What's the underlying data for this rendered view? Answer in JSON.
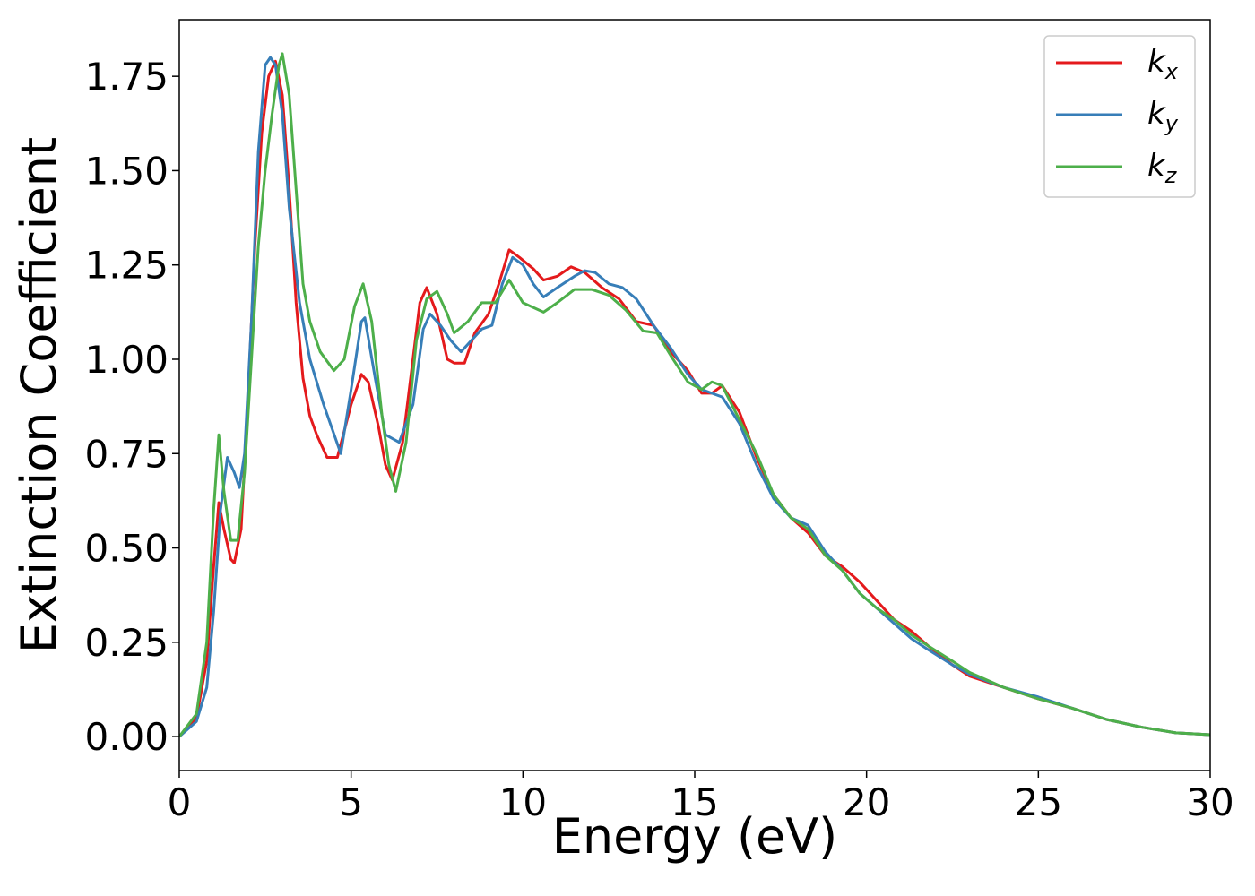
{
  "chart_data": {
    "type": "line",
    "xlabel": "Energy (eV)",
    "ylabel": "Extinction Coefficient",
    "xlim": [
      0,
      30
    ],
    "xticks": [
      0,
      5,
      10,
      15,
      20,
      25,
      30
    ],
    "ylim": [
      -0.09,
      1.9
    ],
    "yticks": [
      {
        "value": 0,
        "label": "0.00"
      },
      {
        "value": 0.25,
        "label": "0.25"
      },
      {
        "value": 0.5,
        "label": "0.50"
      },
      {
        "value": 0.75,
        "label": "0.75"
      },
      {
        "value": 1,
        "label": "1.00"
      },
      {
        "value": 1.25,
        "label": "1.25"
      },
      {
        "value": 1.5,
        "label": "1.50"
      },
      {
        "value": 1.75,
        "label": "1.75"
      }
    ],
    "legend": "upper right",
    "series": [
      {
        "name": "kx",
        "color": "#e41a1c",
        "x": [
          0,
          0.5,
          0.8,
          1.0,
          1.15,
          1.3,
          1.5,
          1.6,
          1.8,
          2.0,
          2.2,
          2.4,
          2.6,
          2.8,
          3.0,
          3.2,
          3.4,
          3.6,
          3.8,
          4.0,
          4.3,
          4.6,
          5.0,
          5.3,
          5.5,
          5.8,
          6.0,
          6.2,
          6.5,
          6.8,
          7.0,
          7.2,
          7.5,
          7.8,
          8.0,
          8.3,
          8.6,
          9.0,
          9.3,
          9.6,
          9.9,
          10.3,
          10.6,
          11.0,
          11.4,
          11.8,
          12.3,
          12.8,
          13.3,
          13.8,
          14.3,
          14.8,
          15.2,
          15.5,
          15.8,
          16.3,
          16.8,
          17.3,
          17.8,
          18.3,
          18.8,
          19.3,
          19.8,
          20.3,
          20.8,
          21.3,
          21.8,
          22.5,
          23,
          24,
          25,
          26,
          27,
          28,
          29,
          30
        ],
        "values": [
          0,
          0.05,
          0.2,
          0.45,
          0.62,
          0.55,
          0.47,
          0.46,
          0.55,
          0.9,
          1.3,
          1.6,
          1.75,
          1.79,
          1.7,
          1.45,
          1.15,
          0.95,
          0.85,
          0.8,
          0.74,
          0.74,
          0.88,
          0.96,
          0.94,
          0.82,
          0.72,
          0.68,
          0.78,
          1.0,
          1.15,
          1.19,
          1.12,
          1.0,
          0.99,
          0.99,
          1.07,
          1.12,
          1.2,
          1.29,
          1.27,
          1.24,
          1.21,
          1.22,
          1.245,
          1.23,
          1.19,
          1.16,
          1.1,
          1.09,
          1.02,
          0.97,
          0.91,
          0.91,
          0.93,
          0.86,
          0.74,
          0.64,
          0.58,
          0.54,
          0.48,
          0.45,
          0.41,
          0.36,
          0.31,
          0.28,
          0.24,
          0.19,
          0.16,
          0.13,
          0.1,
          0.075,
          0.045,
          0.025,
          0.01,
          0.005
        ]
      },
      {
        "name": "ky",
        "color": "#377eb8",
        "x": [
          0,
          0.5,
          0.8,
          1.0,
          1.2,
          1.4,
          1.6,
          1.75,
          1.9,
          2.1,
          2.3,
          2.5,
          2.65,
          2.8,
          3.0,
          3.2,
          3.5,
          3.8,
          4.2,
          4.7,
          5.0,
          5.3,
          5.4,
          5.7,
          6.0,
          6.4,
          6.8,
          7.1,
          7.3,
          7.6,
          7.9,
          8.2,
          8.5,
          8.8,
          9.1,
          9.4,
          9.7,
          10.0,
          10.3,
          10.6,
          11.0,
          11.5,
          11.8,
          12.1,
          12.5,
          12.9,
          13.3,
          13.8,
          14.3,
          14.8,
          15.2,
          15.8,
          16.3,
          16.8,
          17.3,
          17.8,
          18.3,
          18.8,
          19.3,
          19.8,
          20.3,
          20.8,
          21.3,
          21.8,
          22.5,
          23,
          24,
          25,
          26,
          27,
          28,
          29,
          30
        ],
        "values": [
          0,
          0.04,
          0.13,
          0.33,
          0.6,
          0.74,
          0.7,
          0.66,
          0.75,
          1.1,
          1.55,
          1.78,
          1.8,
          1.78,
          1.65,
          1.4,
          1.15,
          1.0,
          0.88,
          0.75,
          0.92,
          1.1,
          1.11,
          0.95,
          0.8,
          0.78,
          0.88,
          1.08,
          1.12,
          1.09,
          1.05,
          1.02,
          1.05,
          1.08,
          1.09,
          1.2,
          1.27,
          1.25,
          1.2,
          1.165,
          1.19,
          1.22,
          1.235,
          1.23,
          1.2,
          1.19,
          1.16,
          1.09,
          1.03,
          0.96,
          0.92,
          0.9,
          0.83,
          0.72,
          0.63,
          0.58,
          0.56,
          0.49,
          0.44,
          0.38,
          0.34,
          0.3,
          0.26,
          0.23,
          0.19,
          0.165,
          0.13,
          0.105,
          0.075,
          0.045,
          0.025,
          0.01,
          0.005
        ]
      },
      {
        "name": "kz",
        "color": "#4daf4a",
        "x": [
          0,
          0.5,
          0.8,
          1.0,
          1.15,
          1.3,
          1.5,
          1.7,
          1.9,
          2.1,
          2.3,
          2.5,
          2.7,
          2.9,
          3.0,
          3.2,
          3.4,
          3.6,
          3.8,
          4.1,
          4.5,
          4.8,
          5.1,
          5.35,
          5.6,
          5.9,
          6.1,
          6.3,
          6.6,
          6.9,
          7.2,
          7.5,
          7.8,
          8.0,
          8.4,
          8.8,
          9.2,
          9.6,
          10.0,
          10.6,
          11.0,
          11.5,
          12.0,
          12.5,
          13.0,
          13.5,
          13.9,
          14.3,
          14.8,
          15.2,
          15.5,
          15.8,
          16.3,
          16.8,
          17.3,
          17.8,
          18.3,
          18.8,
          19.3,
          19.8,
          20.3,
          20.8,
          21.3,
          21.8,
          22.5,
          23,
          24,
          25,
          26,
          27,
          28,
          29,
          30
        ],
        "values": [
          0,
          0.06,
          0.25,
          0.6,
          0.8,
          0.65,
          0.52,
          0.52,
          0.7,
          1.0,
          1.3,
          1.5,
          1.65,
          1.78,
          1.81,
          1.7,
          1.45,
          1.2,
          1.1,
          1.02,
          0.97,
          1.0,
          1.14,
          1.2,
          1.1,
          0.85,
          0.72,
          0.65,
          0.78,
          1.05,
          1.16,
          1.18,
          1.12,
          1.07,
          1.1,
          1.15,
          1.15,
          1.21,
          1.15,
          1.125,
          1.15,
          1.185,
          1.185,
          1.17,
          1.13,
          1.075,
          1.07,
          1.01,
          0.94,
          0.92,
          0.94,
          0.93,
          0.84,
          0.75,
          0.64,
          0.58,
          0.55,
          0.48,
          0.44,
          0.38,
          0.34,
          0.31,
          0.27,
          0.24,
          0.2,
          0.17,
          0.13,
          0.1,
          0.075,
          0.045,
          0.025,
          0.01,
          0.005
        ]
      }
    ]
  }
}
